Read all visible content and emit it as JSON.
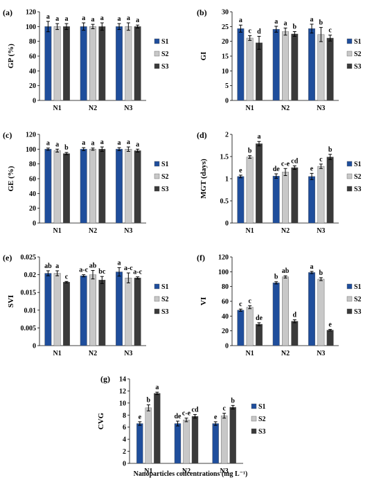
{
  "colors": {
    "S1": "#1f4e9c",
    "S2": "#c8c8c8",
    "S3": "#3a3a3a"
  },
  "xlabel_bottom": "Nanoparticles concentrations (mg L⁻¹)",
  "chart_data": [
    {
      "type": "bar",
      "panel": "(a)",
      "ylabel": "GP (%)",
      "categories": [
        "N1",
        "N2",
        "N3"
      ],
      "ylim": [
        0,
        120
      ],
      "yticks": [
        0,
        20,
        40,
        60,
        80,
        100,
        120
      ],
      "ytick_labels": [
        "0",
        "20",
        "40",
        "60",
        "80",
        "100",
        "120"
      ],
      "legend": "right",
      "grid": false,
      "series": [
        {
          "name": "S1",
          "values": [
            100,
            100,
            100
          ],
          "errors": [
            7,
            5,
            4
          ],
          "letters": [
            "a",
            "a",
            "a"
          ]
        },
        {
          "name": "S2",
          "values": [
            100,
            100,
            100
          ],
          "errors": [
            4,
            3,
            5
          ],
          "letters": [
            "a",
            "a",
            "a"
          ]
        },
        {
          "name": "S3",
          "values": [
            100,
            100,
            100
          ],
          "errors": [
            4,
            5,
            2
          ],
          "letters": [
            "a",
            "a",
            "a"
          ]
        }
      ]
    },
    {
      "type": "bar",
      "panel": "(b)",
      "ylabel": "GI",
      "categories": [
        "N1",
        "N2",
        "N3"
      ],
      "ylim": [
        0,
        30
      ],
      "yticks": [
        0,
        5,
        10,
        15,
        20,
        25,
        30
      ],
      "ytick_labels": [
        "0",
        "5",
        "10",
        "15",
        "20",
        "25",
        "30"
      ],
      "legend": "right",
      "grid": false,
      "series": [
        {
          "name": "S1",
          "values": [
            24.3,
            24.1,
            24.3
          ],
          "errors": [
            1.2,
            1.0,
            1.5
          ],
          "letters": [
            "a",
            "a",
            "a"
          ]
        },
        {
          "name": "S2",
          "values": [
            21.1,
            23.3,
            22.3
          ],
          "errors": [
            0.8,
            1.2,
            2.4
          ],
          "letters": [
            "c",
            "a",
            "b"
          ]
        },
        {
          "name": "S3",
          "values": [
            19.5,
            22.5,
            21.1
          ],
          "errors": [
            2.2,
            0.8,
            1.0
          ],
          "letters": [
            "d",
            "b",
            "c"
          ]
        }
      ]
    },
    {
      "type": "bar",
      "panel": "(c)",
      "ylabel": "GE (%)",
      "categories": [
        "N1",
        "N2",
        "N3"
      ],
      "ylim": [
        0,
        120
      ],
      "yticks": [
        0,
        20,
        40,
        60,
        80,
        100,
        120
      ],
      "ytick_labels": [
        "0",
        "20",
        "40",
        "60",
        "80",
        "100",
        "120"
      ],
      "legend": "right",
      "grid": false,
      "series": [
        {
          "name": "S1",
          "values": [
            100,
            100,
            100
          ],
          "errors": [
            1.5,
            2,
            2
          ],
          "letters": [
            "a",
            "a",
            "a"
          ]
        },
        {
          "name": "S2",
          "values": [
            98,
            100,
            100
          ],
          "errors": [
            2,
            1.5,
            3
          ],
          "letters": [
            "a",
            "a",
            "a"
          ]
        },
        {
          "name": "S3",
          "values": [
            94,
            100,
            98
          ],
          "errors": [
            1.5,
            3,
            2
          ],
          "letters": [
            "b",
            "a",
            "a"
          ]
        }
      ]
    },
    {
      "type": "bar",
      "panel": "(d)",
      "ylabel": "MGT (days)",
      "categories": [
        "N1",
        "N2",
        "N3"
      ],
      "ylim": [
        0,
        2
      ],
      "yticks": [
        0,
        0.5,
        1,
        1.5,
        2
      ],
      "ytick_labels": [
        "0",
        "0.5",
        "1",
        "1.5",
        "2"
      ],
      "legend": "right",
      "grid": false,
      "series": [
        {
          "name": "S1",
          "values": [
            1.05,
            1.06,
            1.05
          ],
          "errors": [
            0.03,
            0.05,
            0.07
          ],
          "letters": [
            "e",
            "de",
            "e"
          ]
        },
        {
          "name": "S2",
          "values": [
            1.49,
            1.15,
            1.28
          ],
          "errors": [
            0.03,
            0.08,
            0.05
          ],
          "letters": [
            "b",
            "c-e",
            "c"
          ]
        },
        {
          "name": "S3",
          "values": [
            1.79,
            1.25,
            1.49
          ],
          "errors": [
            0.05,
            0.04,
            0.06
          ],
          "letters": [
            "a",
            "cd",
            "b"
          ]
        }
      ]
    },
    {
      "type": "bar",
      "panel": "(e)",
      "ylabel": "SVI",
      "categories": [
        "N1",
        "N2",
        "N3"
      ],
      "ylim": [
        0,
        0.025
      ],
      "yticks": [
        0,
        0.005,
        0.01,
        0.015,
        0.02,
        0.025
      ],
      "ytick_labels": [
        "0",
        "0.005",
        "0.01",
        "0.015",
        "0.02",
        "0.025"
      ],
      "legend": "right",
      "grid": false,
      "series": [
        {
          "name": "S1",
          "values": [
            0.0204,
            0.0197,
            0.0208
          ],
          "errors": [
            0.0007,
            0.0003,
            0.0012
          ],
          "letters": [
            "ab",
            "a-c",
            "a"
          ]
        },
        {
          "name": "S2",
          "values": [
            0.0204,
            0.02,
            0.0191
          ],
          "errors": [
            0.0007,
            0.0012,
            0.0014
          ],
          "letters": [
            "a",
            "ab",
            "a-c"
          ]
        },
        {
          "name": "S3",
          "values": [
            0.0179,
            0.0185,
            0.0191
          ],
          "errors": [
            0.0002,
            0.001,
            0.0003
          ],
          "letters": [
            "c",
            "bc",
            "a-c"
          ]
        }
      ]
    },
    {
      "type": "bar",
      "panel": "(f)",
      "ylabel": "VI",
      "categories": [
        "N1",
        "N2",
        "N3"
      ],
      "ylim": [
        0,
        120
      ],
      "yticks": [
        0,
        20,
        40,
        60,
        80,
        100,
        120
      ],
      "ytick_labels": [
        "0",
        "20",
        "40",
        "60",
        "80",
        "100",
        "120"
      ],
      "legend": "right",
      "grid": false,
      "series": [
        {
          "name": "S1",
          "values": [
            48,
            85,
            99
          ],
          "errors": [
            1.5,
            1.5,
            1.5
          ],
          "letters": [
            "c",
            "b",
            "a"
          ]
        },
        {
          "name": "S2",
          "values": [
            52,
            93,
            90
          ],
          "errors": [
            2,
            1.5,
            2
          ],
          "letters": [
            "c",
            "ab",
            "b"
          ]
        },
        {
          "name": "S3",
          "values": [
            29,
            33,
            21
          ],
          "errors": [
            2,
            2,
            1
          ],
          "letters": [
            "de",
            "d",
            "e"
          ]
        }
      ]
    },
    {
      "type": "bar",
      "panel": "(g)",
      "ylabel": "CVG",
      "xlabel": "Nanoparticles concentrations (mg L⁻¹)",
      "categories": [
        "N1",
        "N2",
        "N3"
      ],
      "ylim": [
        0,
        14
      ],
      "yticks": [
        0,
        2,
        4,
        6,
        8,
        10,
        12,
        14
      ],
      "ytick_labels": [
        "0",
        "2",
        "4",
        "6",
        "8",
        "10",
        "12",
        "14"
      ],
      "legend": "right",
      "grid": false,
      "series": [
        {
          "name": "S1",
          "values": [
            6.6,
            6.6,
            6.6
          ],
          "errors": [
            0.3,
            0.4,
            0.3
          ],
          "letters": [
            "e",
            "de",
            "e"
          ]
        },
        {
          "name": "S2",
          "values": [
            9.2,
            7.2,
            7.9
          ],
          "errors": [
            0.5,
            0.3,
            0.4
          ],
          "letters": [
            "b",
            "c-e",
            "c"
          ]
        },
        {
          "name": "S3",
          "values": [
            11.6,
            7.8,
            9.3
          ],
          "errors": [
            0.2,
            0.3,
            0.3
          ],
          "letters": [
            "a",
            "cd",
            "b"
          ]
        }
      ]
    }
  ]
}
